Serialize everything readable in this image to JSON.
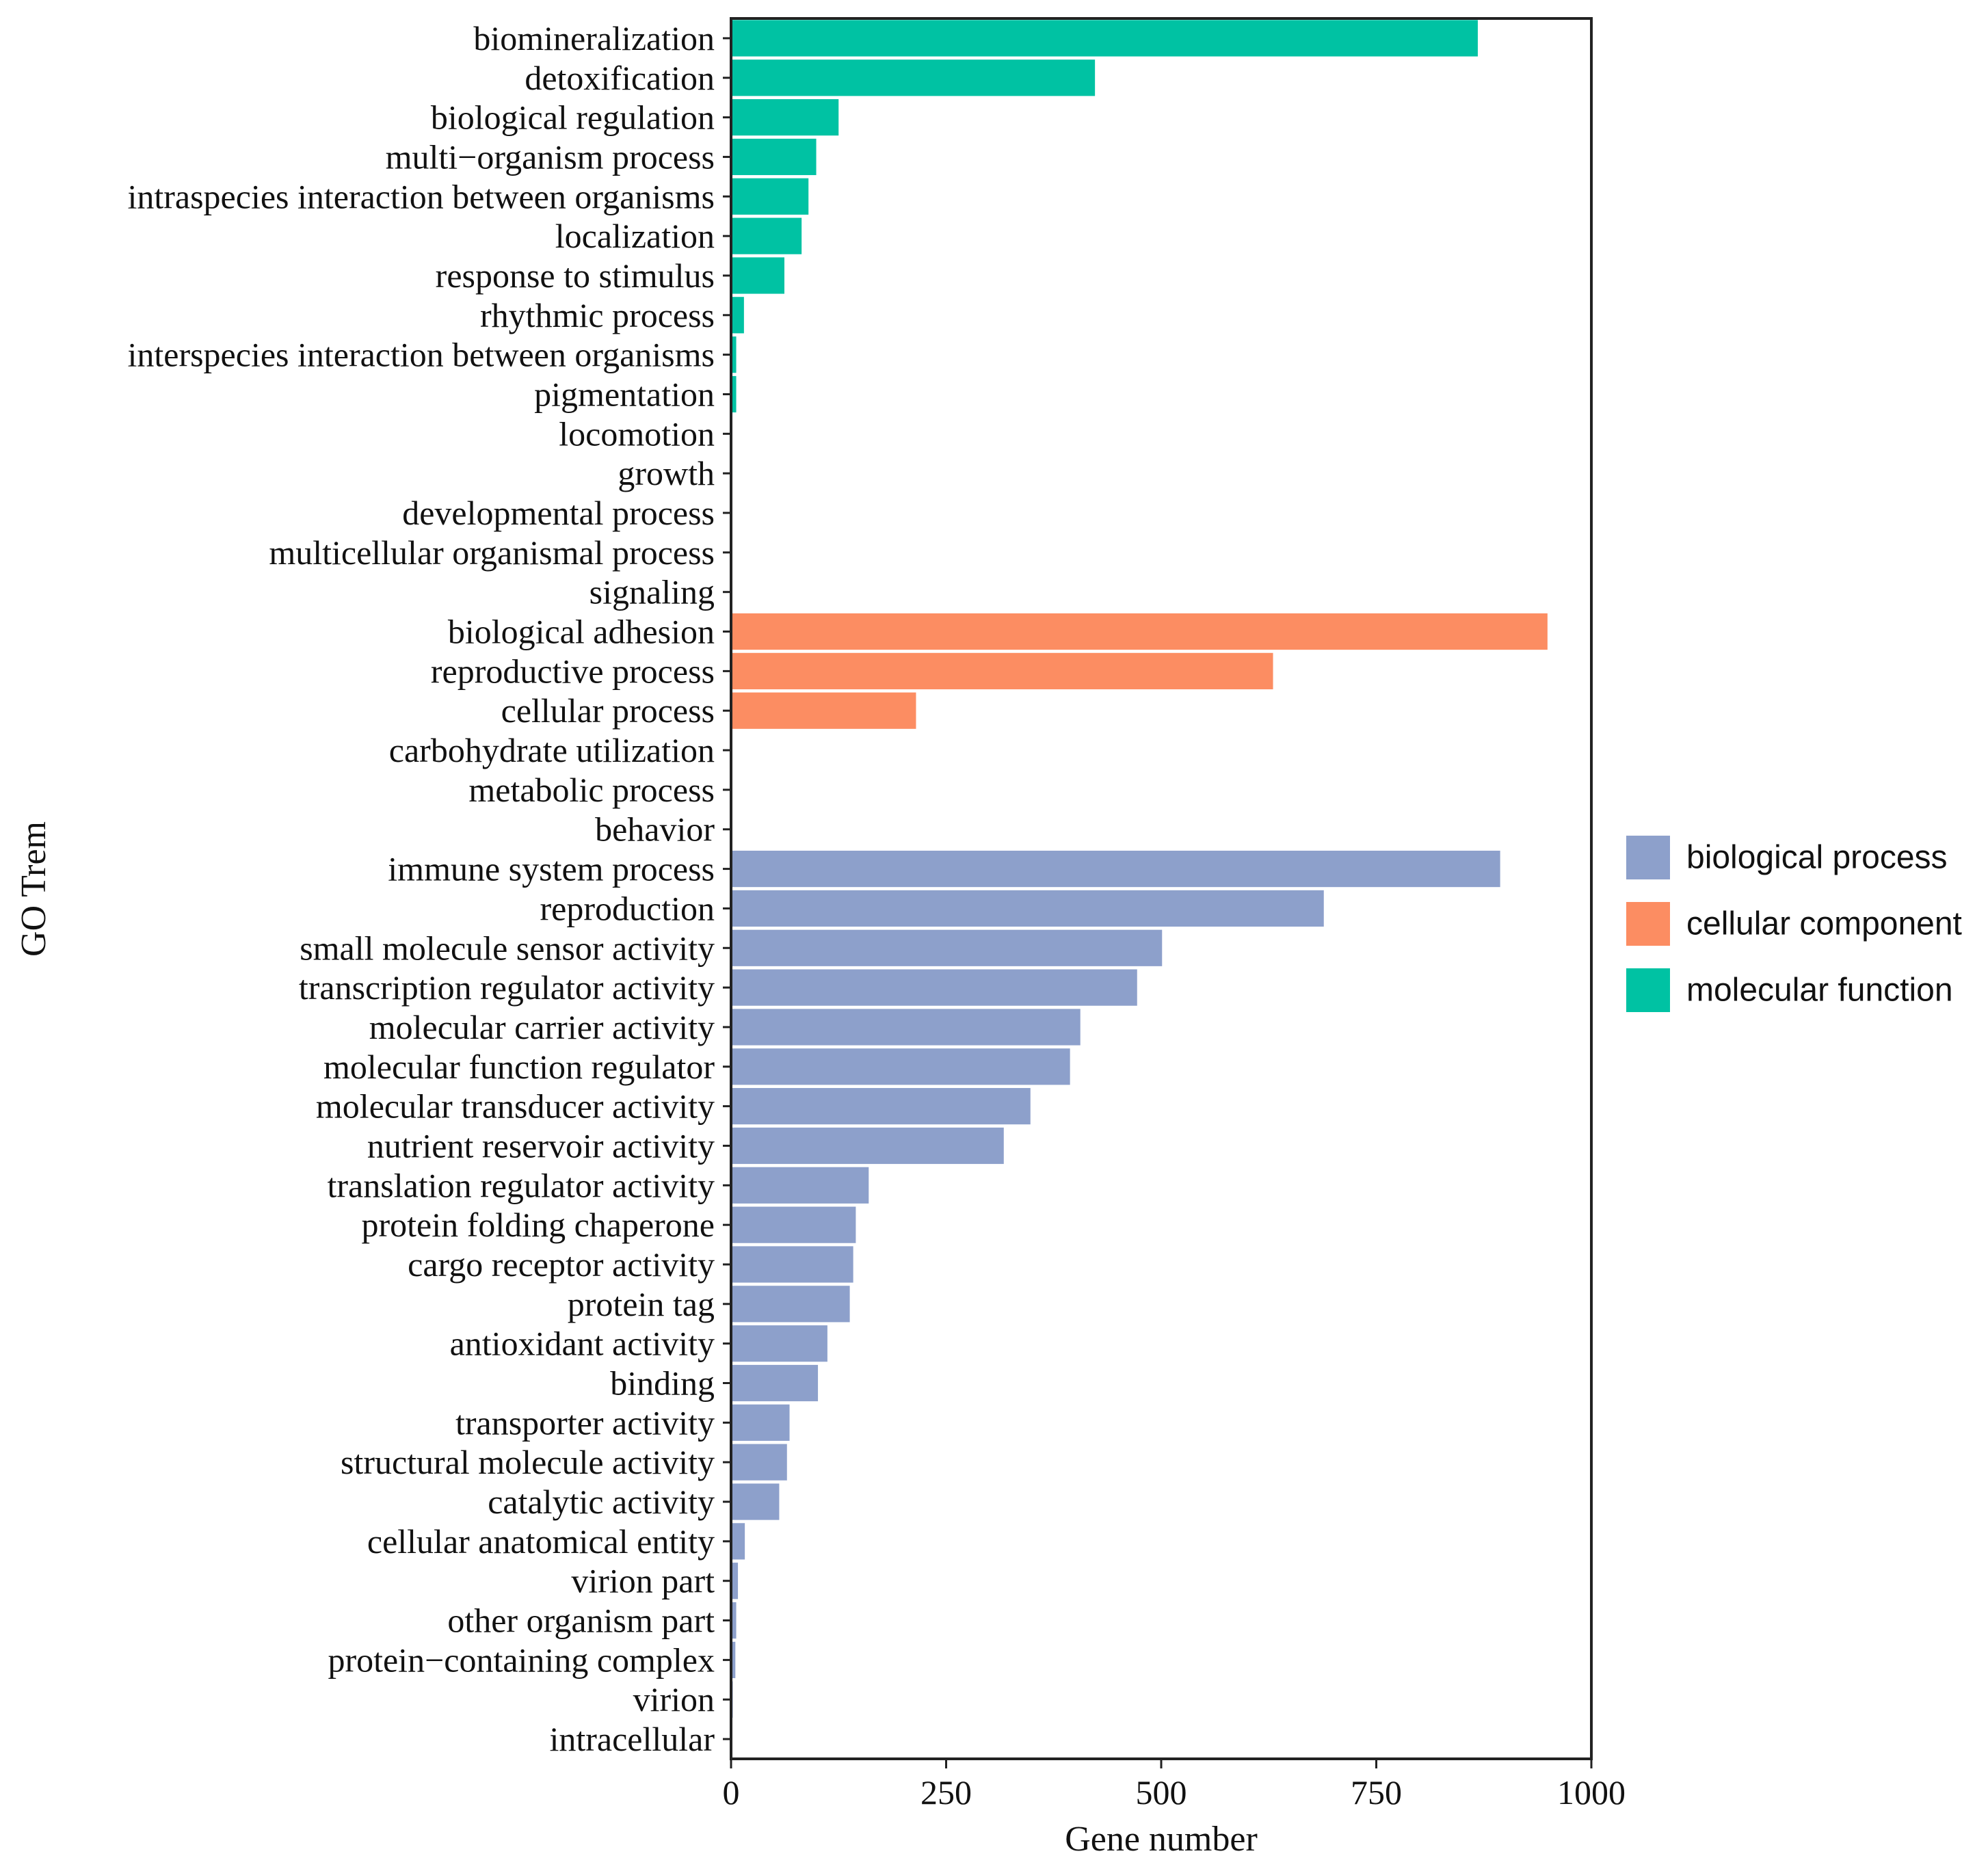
{
  "chart_data": {
    "type": "bar",
    "orientation": "horizontal",
    "xlabel": "Gene number",
    "ylabel": "GO Trem",
    "xlim": [
      0,
      1000
    ],
    "xticks": [
      0,
      250,
      500,
      750,
      1000
    ],
    "grid": false,
    "legend_position": "right",
    "legend": [
      {
        "name": "biological process",
        "color": "#8DA0CB"
      },
      {
        "name": "cellular component",
        "color": "#FC8D62"
      },
      {
        "name": "molecular function",
        "color": "#00C2A3"
      }
    ],
    "bars": [
      {
        "category": "biomineralization",
        "value": 868,
        "group": "molecular function"
      },
      {
        "category": "detoxification",
        "value": 423,
        "group": "molecular function"
      },
      {
        "category": "biological regulation",
        "value": 125,
        "group": "molecular function"
      },
      {
        "category": "multi−organism process",
        "value": 99,
        "group": "molecular function"
      },
      {
        "category": "intraspecies interaction between organisms",
        "value": 90,
        "group": "molecular function"
      },
      {
        "category": "localization",
        "value": 82,
        "group": "molecular function"
      },
      {
        "category": "response to stimulus",
        "value": 62,
        "group": "molecular function"
      },
      {
        "category": "rhythmic process",
        "value": 15,
        "group": "molecular function"
      },
      {
        "category": "interspecies interaction between organisms",
        "value": 6,
        "group": "molecular function"
      },
      {
        "category": "pigmentation",
        "value": 6,
        "group": "molecular function"
      },
      {
        "category": "locomotion",
        "value": 0,
        "group": "molecular function"
      },
      {
        "category": "growth",
        "value": 0,
        "group": "molecular function"
      },
      {
        "category": "developmental process",
        "value": 0,
        "group": "molecular function"
      },
      {
        "category": "multicellular organismal process",
        "value": 0,
        "group": "molecular function"
      },
      {
        "category": "signaling",
        "value": 0,
        "group": "molecular function"
      },
      {
        "category": "biological adhesion",
        "value": 949,
        "group": "cellular component"
      },
      {
        "category": "reproductive process",
        "value": 630,
        "group": "cellular component"
      },
      {
        "category": "cellular process",
        "value": 215,
        "group": "cellular component"
      },
      {
        "category": "carbohydrate utilization",
        "value": 0,
        "group": "cellular component"
      },
      {
        "category": "metabolic process",
        "value": 0,
        "group": "cellular component"
      },
      {
        "category": "behavior",
        "value": 0,
        "group": "cellular component"
      },
      {
        "category": "immune system process",
        "value": 894,
        "group": "biological process"
      },
      {
        "category": "reproduction",
        "value": 689,
        "group": "biological process"
      },
      {
        "category": "small molecule sensor activity",
        "value": 501,
        "group": "biological process"
      },
      {
        "category": "transcription regulator activity",
        "value": 472,
        "group": "biological process"
      },
      {
        "category": "molecular carrier activity",
        "value": 406,
        "group": "biological process"
      },
      {
        "category": "molecular function regulator",
        "value": 394,
        "group": "biological process"
      },
      {
        "category": "molecular transducer activity",
        "value": 348,
        "group": "biological process"
      },
      {
        "category": "nutrient reservoir activity",
        "value": 317,
        "group": "biological process"
      },
      {
        "category": "translation regulator activity",
        "value": 160,
        "group": "biological process"
      },
      {
        "category": "protein folding chaperone",
        "value": 145,
        "group": "biological process"
      },
      {
        "category": "cargo receptor activity",
        "value": 142,
        "group": "biological process"
      },
      {
        "category": "protein tag",
        "value": 138,
        "group": "biological process"
      },
      {
        "category": "antioxidant activity",
        "value": 112,
        "group": "biological process"
      },
      {
        "category": "binding",
        "value": 101,
        "group": "biological process"
      },
      {
        "category": "transporter activity",
        "value": 68,
        "group": "biological process"
      },
      {
        "category": "structural molecule activity",
        "value": 65,
        "group": "biological process"
      },
      {
        "category": "catalytic activity",
        "value": 56,
        "group": "biological process"
      },
      {
        "category": "cellular anatomical entity",
        "value": 16,
        "group": "biological process"
      },
      {
        "category": "virion part",
        "value": 8,
        "group": "biological process"
      },
      {
        "category": "other organism part",
        "value": 6,
        "group": "biological process"
      },
      {
        "category": "protein−containing complex",
        "value": 5,
        "group": "biological process"
      },
      {
        "category": "virion",
        "value": 2,
        "group": "biological process"
      },
      {
        "category": "intracellular",
        "value": 1,
        "group": "biological process"
      }
    ]
  }
}
